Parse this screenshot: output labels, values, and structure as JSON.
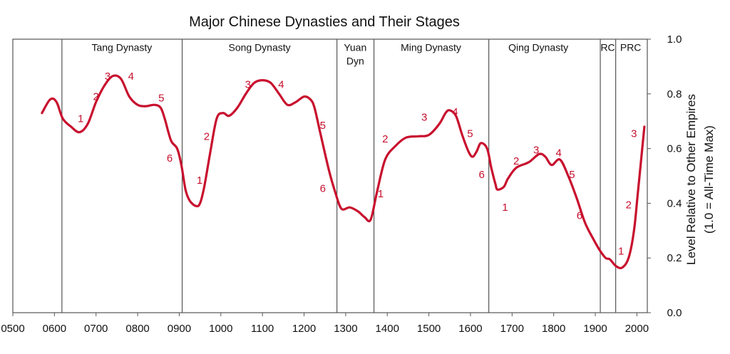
{
  "chart_data": {
    "type": "line",
    "title": "Major Chinese Dynasties and Their Stages",
    "ylabel_line1": "Level Relative to Other Empires",
    "ylabel_line2": "(1.0 = All-Time Max)",
    "xlim": [
      500,
      2025
    ],
    "ylim": [
      0,
      1.0
    ],
    "x_ticks": [
      "0500",
      "0600",
      "0700",
      "0800",
      "0900",
      "1000",
      "1100",
      "1200",
      "1300",
      "1400",
      "1500",
      "1600",
      "1700",
      "1800",
      "1900",
      "2000"
    ],
    "x_tick_values": [
      500,
      600,
      700,
      800,
      900,
      1000,
      1100,
      1200,
      1300,
      1400,
      1500,
      1600,
      1700,
      1800,
      1900,
      2000
    ],
    "y_ticks": [
      "0.0",
      "0.2",
      "0.4",
      "0.6",
      "0.8",
      "1.0"
    ],
    "y_tick_values": [
      0.0,
      0.2,
      0.4,
      0.6,
      0.8,
      1.0
    ],
    "line_color": "#c8102e",
    "dynasty_boundaries": [
      618,
      907,
      1279,
      1368,
      1644,
      1912,
      1949
    ],
    "dynasties": [
      {
        "label": "Tang Dynasty",
        "x": 762,
        "y": 0.97
      },
      {
        "label": "Song Dynasty",
        "x": 1093,
        "y": 0.97
      },
      {
        "label": "Yuan",
        "x": 1323,
        "y": 0.97
      },
      {
        "label": "Dyn",
        "x": 1323,
        "y": 0.92
      },
      {
        "label": "Ming Dynasty",
        "x": 1505,
        "y": 0.97
      },
      {
        "label": "Qing Dynasty",
        "x": 1763,
        "y": 0.97
      },
      {
        "label": "RC",
        "x": 1930,
        "y": 0.97
      },
      {
        "label": "PRC",
        "x": 1985,
        "y": 0.97
      }
    ],
    "series": [
      {
        "x": [
          570,
          590,
          605,
          620,
          640,
          660,
          680,
          700,
          720,
          740,
          760,
          780,
          800,
          820,
          840,
          855,
          865,
          880,
          895,
          905,
          915,
          925,
          940,
          950,
          960,
          975,
          990,
          1005,
          1020,
          1040,
          1060,
          1080,
          1100,
          1120,
          1140,
          1160,
          1180,
          1200,
          1215,
          1225,
          1240,
          1260,
          1275,
          1290,
          1310,
          1330,
          1345,
          1360,
          1375,
          1395,
          1420,
          1445,
          1475,
          1500,
          1525,
          1540,
          1550,
          1565,
          1580,
          1595,
          1605,
          1615,
          1625,
          1640,
          1650,
          1660,
          1665,
          1680,
          1690,
          1710,
          1740,
          1765,
          1780,
          1795,
          1815,
          1835,
          1855,
          1875,
          1895,
          1910,
          1925,
          1935,
          1950,
          1965,
          1980,
          1993,
          2003,
          2018
        ],
        "y": [
          0.73,
          0.78,
          0.77,
          0.71,
          0.68,
          0.66,
          0.69,
          0.77,
          0.83,
          0.865,
          0.855,
          0.79,
          0.76,
          0.755,
          0.76,
          0.75,
          0.71,
          0.63,
          0.6,
          0.54,
          0.45,
          0.41,
          0.39,
          0.4,
          0.46,
          0.59,
          0.71,
          0.73,
          0.72,
          0.75,
          0.8,
          0.84,
          0.85,
          0.84,
          0.8,
          0.76,
          0.77,
          0.79,
          0.78,
          0.75,
          0.65,
          0.52,
          0.44,
          0.38,
          0.385,
          0.37,
          0.35,
          0.34,
          0.44,
          0.56,
          0.61,
          0.64,
          0.645,
          0.65,
          0.69,
          0.73,
          0.74,
          0.72,
          0.65,
          0.59,
          0.57,
          0.59,
          0.62,
          0.6,
          0.53,
          0.47,
          0.45,
          0.46,
          0.49,
          0.53,
          0.55,
          0.58,
          0.57,
          0.54,
          0.56,
          0.5,
          0.42,
          0.33,
          0.27,
          0.23,
          0.2,
          0.195,
          0.17,
          0.165,
          0.2,
          0.3,
          0.45,
          0.68
        ]
      }
    ],
    "stage_labels": [
      {
        "label": "1",
        "x": 663,
        "y": 0.71
      },
      {
        "label": "2",
        "x": 700,
        "y": 0.79
      },
      {
        "label": "3",
        "x": 728,
        "y": 0.865
      },
      {
        "label": "4",
        "x": 784,
        "y": 0.865
      },
      {
        "label": "5",
        "x": 857,
        "y": 0.785
      },
      {
        "label": "6",
        "x": 877,
        "y": 0.565
      },
      {
        "label": "1",
        "x": 949,
        "y": 0.485
      },
      {
        "label": "2",
        "x": 966,
        "y": 0.645
      },
      {
        "label": "3",
        "x": 1065,
        "y": 0.835
      },
      {
        "label": "4",
        "x": 1145,
        "y": 0.835
      },
      {
        "label": "5",
        "x": 1245,
        "y": 0.685
      },
      {
        "label": "6",
        "x": 1245,
        "y": 0.455
      },
      {
        "label": "1",
        "x": 1384,
        "y": 0.435
      },
      {
        "label": "2",
        "x": 1395,
        "y": 0.635
      },
      {
        "label": "3",
        "x": 1489,
        "y": 0.715
      },
      {
        "label": "4",
        "x": 1563,
        "y": 0.735
      },
      {
        "label": "5",
        "x": 1599,
        "y": 0.655
      },
      {
        "label": "6",
        "x": 1627,
        "y": 0.505
      },
      {
        "label": "1",
        "x": 1683,
        "y": 0.385
      },
      {
        "label": "2",
        "x": 1710,
        "y": 0.555
      },
      {
        "label": "3",
        "x": 1758,
        "y": 0.595
      },
      {
        "label": "4",
        "x": 1812,
        "y": 0.585
      },
      {
        "label": "5",
        "x": 1844,
        "y": 0.505
      },
      {
        "label": "6",
        "x": 1862,
        "y": 0.355
      },
      {
        "label": "1",
        "x": 1962,
        "y": 0.225
      },
      {
        "label": "2",
        "x": 1980,
        "y": 0.395
      },
      {
        "label": "3",
        "x": 1993,
        "y": 0.655
      }
    ]
  }
}
